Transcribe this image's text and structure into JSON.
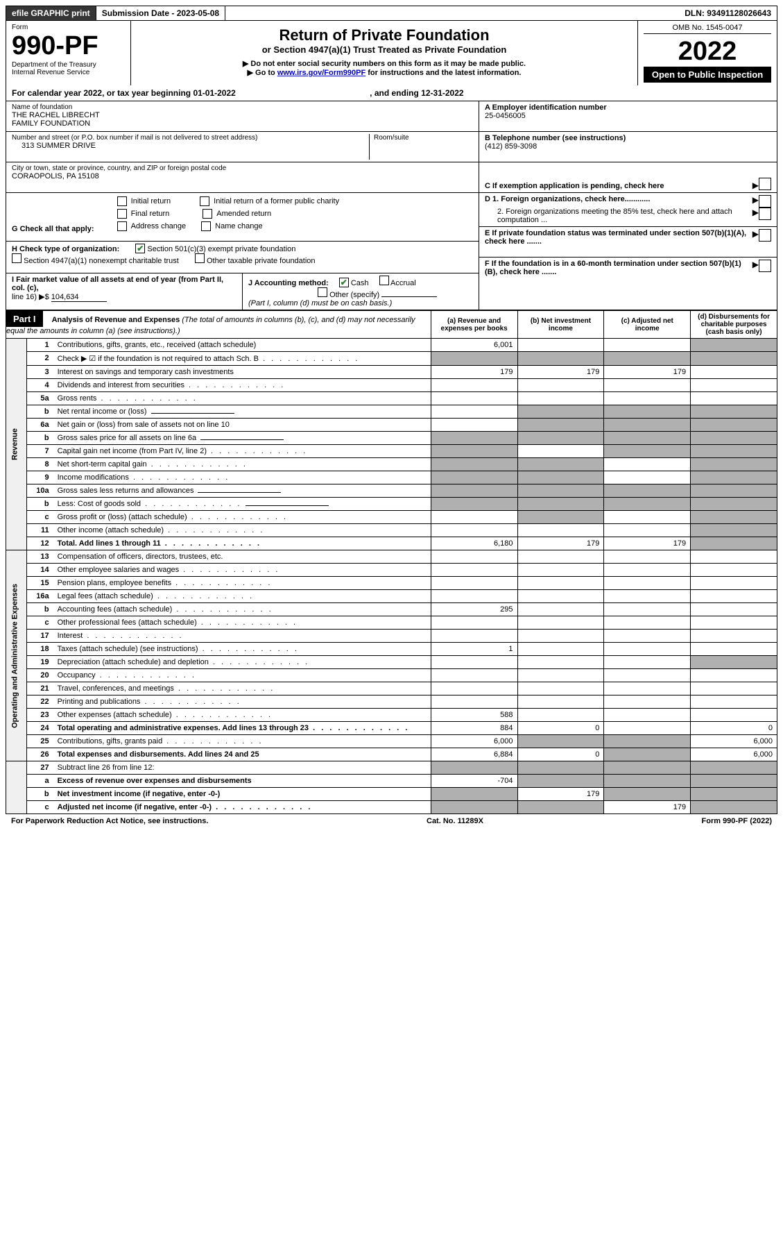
{
  "top_bar": {
    "efile": "efile GRAPHIC print",
    "submission_label": "Submission Date - 2023-05-08",
    "dln": "DLN: 93491128026643"
  },
  "header": {
    "form_label": "Form",
    "form_number": "990-PF",
    "dept": "Department of the Treasury",
    "irs": "Internal Revenue Service",
    "title": "Return of Private Foundation",
    "subtitle": "or Section 4947(a)(1) Trust Treated as Private Foundation",
    "note1": "▶ Do not enter social security numbers on this form as it may be made public.",
    "note2_prefix": "▶ Go to ",
    "note2_link": "www.irs.gov/Form990PF",
    "note2_suffix": " for instructions and the latest information.",
    "omb": "OMB No. 1545-0047",
    "year": "2022",
    "inspection": "Open to Public Inspection"
  },
  "calendar": {
    "text": "For calendar year 2022, or tax year beginning 01-01-2022",
    "ending": ", and ending 12-31-2022"
  },
  "entity": {
    "name_label": "Name of foundation",
    "name1": "THE RACHEL LIBRECHT",
    "name2": "FAMILY FOUNDATION",
    "street_label": "Number and street (or P.O. box number if mail is not delivered to street address)",
    "street": "313 SUMMER DRIVE",
    "room_label": "Room/suite",
    "city_label": "City or town, state or province, country, and ZIP or foreign postal code",
    "city": "CORAOPOLIS, PA  15108",
    "ein_label": "A Employer identification number",
    "ein": "25-0456005",
    "phone_label": "B Telephone number (see instructions)",
    "phone": "(412) 859-3098",
    "c_label": "C If exemption application is pending, check here",
    "d1_label": "D 1. Foreign organizations, check here............",
    "d2_label": "2. Foreign organizations meeting the 85% test, check here and attach computation ...",
    "e_label": "E  If private foundation status was terminated under section 507(b)(1)(A), check here .......",
    "f_label": "F  If the foundation is in a 60-month termination under section 507(b)(1)(B), check here .......",
    "g_label": "G Check all that apply:",
    "g_opts": [
      "Initial return",
      "Initial return of a former public charity",
      "Final return",
      "Amended return",
      "Address change",
      "Name change"
    ],
    "h_label": "H Check type of organization:",
    "h_opt1": "Section 501(c)(3) exempt private foundation",
    "h_opt2": "Section 4947(a)(1) nonexempt charitable trust",
    "h_opt3": "Other taxable private foundation",
    "i_label": "I Fair market value of all assets at end of year (from Part II, col. (c),",
    "i_line": "line 16) ▶$ ",
    "i_value": "104,634",
    "j_label": "J Accounting method:",
    "j_cash": "Cash",
    "j_accrual": "Accrual",
    "j_other": "Other (specify)",
    "j_note": "(Part I, column (d) must be on cash basis.)"
  },
  "part1": {
    "header": "Part I",
    "title": "Analysis of Revenue and Expenses",
    "note": " (The total of amounts in columns (b), (c), and (d) may not necessarily equal the amounts in column (a) (see instructions).)",
    "col_a": "(a)    Revenue and expenses per books",
    "col_b": "(b)    Net investment income",
    "col_c": "(c)   Adjusted net income",
    "col_d": "(d)   Disbursements for charitable purposes (cash basis only)",
    "sidebar_revenue": "Revenue",
    "sidebar_expenses": "Operating and Administrative Expenses"
  },
  "lines": [
    {
      "num": "1",
      "desc": "Contributions, gifts, grants, etc., received (attach schedule)",
      "a": "6,001",
      "b": "",
      "c": "",
      "d_shaded": true
    },
    {
      "num": "2",
      "desc": "Check ▶ ☑ if the foundation is not required to attach Sch. B",
      "dotted": true,
      "all_shaded": true
    },
    {
      "num": "3",
      "desc": "Interest on savings and temporary cash investments",
      "a": "179",
      "b": "179",
      "c": "179"
    },
    {
      "num": "4",
      "desc": "Dividends and interest from securities",
      "dotted": true
    },
    {
      "num": "5a",
      "desc": "Gross rents",
      "dotted": true
    },
    {
      "num": "b",
      "desc": "Net rental income or (loss)",
      "inline_blank": true,
      "bcd_shaded": true
    },
    {
      "num": "6a",
      "desc": "Net gain or (loss) from sale of assets not on line 10",
      "bcd_shaded": true,
      "d_shaded": true
    },
    {
      "num": "b",
      "desc": "Gross sales price for all assets on line 6a",
      "inline_blank": true,
      "all_shaded": true
    },
    {
      "num": "7",
      "desc": "Capital gain net income (from Part IV, line 2)",
      "dotted": true,
      "a_shaded": true,
      "cd_shaded": true
    },
    {
      "num": "8",
      "desc": "Net short-term capital gain",
      "dotted": true,
      "ab_shaded": true,
      "d_shaded": true
    },
    {
      "num": "9",
      "desc": "Income modifications",
      "dotted": true,
      "ab_shaded": true,
      "d_shaded": true
    },
    {
      "num": "10a",
      "desc": "Gross sales less returns and allowances",
      "inline_blank": true,
      "all_shaded": true
    },
    {
      "num": "b",
      "desc": "Less: Cost of goods sold",
      "dotted": true,
      "inline_blank": true,
      "all_shaded": true
    },
    {
      "num": "c",
      "desc": "Gross profit or (loss) (attach schedule)",
      "dotted": true,
      "b_shaded": true,
      "d_shaded": true
    },
    {
      "num": "11",
      "desc": "Other income (attach schedule)",
      "dotted": true,
      "d_shaded": true
    },
    {
      "num": "12",
      "desc": "Total. Add lines 1 through 11",
      "dotted": true,
      "bold": true,
      "a": "6,180",
      "b": "179",
      "c": "179",
      "d_shaded": true
    }
  ],
  "exp_lines": [
    {
      "num": "13",
      "desc": "Compensation of officers, directors, trustees, etc."
    },
    {
      "num": "14",
      "desc": "Other employee salaries and wages",
      "dotted": true
    },
    {
      "num": "15",
      "desc": "Pension plans, employee benefits",
      "dotted": true
    },
    {
      "num": "16a",
      "desc": "Legal fees (attach schedule)",
      "dotted": true
    },
    {
      "num": "b",
      "desc": "Accounting fees (attach schedule)",
      "dotted": true,
      "a": "295"
    },
    {
      "num": "c",
      "desc": "Other professional fees (attach schedule)",
      "dotted": true
    },
    {
      "num": "17",
      "desc": "Interest",
      "dotted": true
    },
    {
      "num": "18",
      "desc": "Taxes (attach schedule) (see instructions)",
      "dotted": true,
      "a": "1"
    },
    {
      "num": "19",
      "desc": "Depreciation (attach schedule) and depletion",
      "dotted": true,
      "d_shaded": true
    },
    {
      "num": "20",
      "desc": "Occupancy",
      "dotted": true
    },
    {
      "num": "21",
      "desc": "Travel, conferences, and meetings",
      "dotted": true
    },
    {
      "num": "22",
      "desc": "Printing and publications",
      "dotted": true
    },
    {
      "num": "23",
      "desc": "Other expenses (attach schedule)",
      "dotted": true,
      "a": "588"
    },
    {
      "num": "24",
      "desc": "Total operating and administrative expenses. Add lines 13 through 23",
      "dotted": true,
      "bold": true,
      "a": "884",
      "b": "0",
      "d": "0"
    },
    {
      "num": "25",
      "desc": "Contributions, gifts, grants paid",
      "dotted": true,
      "a": "6,000",
      "bc_shaded": true,
      "d": "6,000"
    },
    {
      "num": "26",
      "desc": "Total expenses and disbursements. Add lines 24 and 25",
      "bold": true,
      "a": "6,884",
      "b": "0",
      "bc_shaded_c": true,
      "d": "6,000"
    }
  ],
  "bottom_lines": [
    {
      "num": "27",
      "desc": "Subtract line 26 from line 12:",
      "all_shaded": true
    },
    {
      "num": "a",
      "desc": "Excess of revenue over expenses and disbursements",
      "bold": true,
      "a": "-704",
      "bcd_shaded": true
    },
    {
      "num": "b",
      "desc": "Net investment income (if negative, enter -0-)",
      "bold": true,
      "a_shaded": true,
      "b": "179",
      "cd_shaded": true
    },
    {
      "num": "c",
      "desc": "Adjusted net income (if negative, enter -0-)",
      "dotted": true,
      "bold": true,
      "ab_shaded": true,
      "c": "179",
      "d_shaded": true
    }
  ],
  "footer": {
    "left": "For Paperwork Reduction Act Notice, see instructions.",
    "center": "Cat. No. 11289X",
    "right": "Form 990-PF (2022)"
  }
}
